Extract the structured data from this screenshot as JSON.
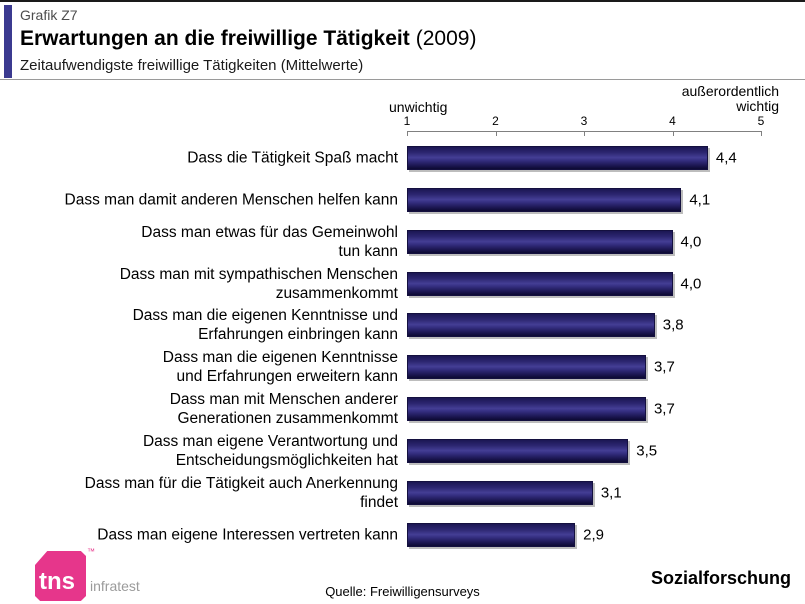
{
  "header": {
    "eyebrow": "Grafik Z7",
    "title": "Erwartungen an die freiwillige Tätigkeit",
    "title_year": "(2009)",
    "subtitle": "Zeitaufwendigste freiwillige Tätigkeiten (Mittelwerte)",
    "accent_color": "#3b3a90"
  },
  "chart_data": {
    "type": "bar",
    "orientation": "horizontal",
    "title": "Erwartungen an die freiwillige Tätigkeit (2009)",
    "axis": {
      "min": 1,
      "max": 5,
      "ticks": [
        "1",
        "2",
        "3",
        "4",
        "5"
      ],
      "left_label": "unwichtig",
      "right_label": "außerordentlich\nwichtig"
    },
    "categories": [
      "Dass die Tätigkeit Spaß macht",
      "Dass man damit anderen Menschen helfen kann",
      "Dass man etwas für das Gemeinwohl\ntun kann",
      "Dass man mit sympathischen Menschen\nzusammenkommt",
      "Dass man die eigenen Kenntnisse und\nErfahrungen einbringen kann",
      "Dass man die eigenen Kenntnisse\nund Erfahrungen erweitern kann",
      "Dass man mit Menschen anderer\nGenerationen zusammenkommt",
      "Dass man eigene Verantwortung und\nEntscheidungsmöglichkeiten hat",
      "Dass man für die Tätigkeit auch Anerkennung\nfindet",
      "Dass man eigene Interessen vertreten kann"
    ],
    "values": [
      4.4,
      4.1,
      4.0,
      4.0,
      3.8,
      3.7,
      3.7,
      3.5,
      3.1,
      2.9
    ],
    "value_labels": [
      "4,4",
      "4,1",
      "4,0",
      "4,0",
      "3,8",
      "3,7",
      "3,7",
      "3,5",
      "3,1",
      "2,9"
    ],
    "bar_color": "#332d7e",
    "grid": false,
    "legend": false
  },
  "footer": {
    "logo_text": "tns",
    "logo_trademark": "™",
    "logo_suffix": "infratest",
    "logo_color": "#e6368b",
    "source": "Quelle: Freiwilligensurveys",
    "brand": "Sozialforschung"
  }
}
